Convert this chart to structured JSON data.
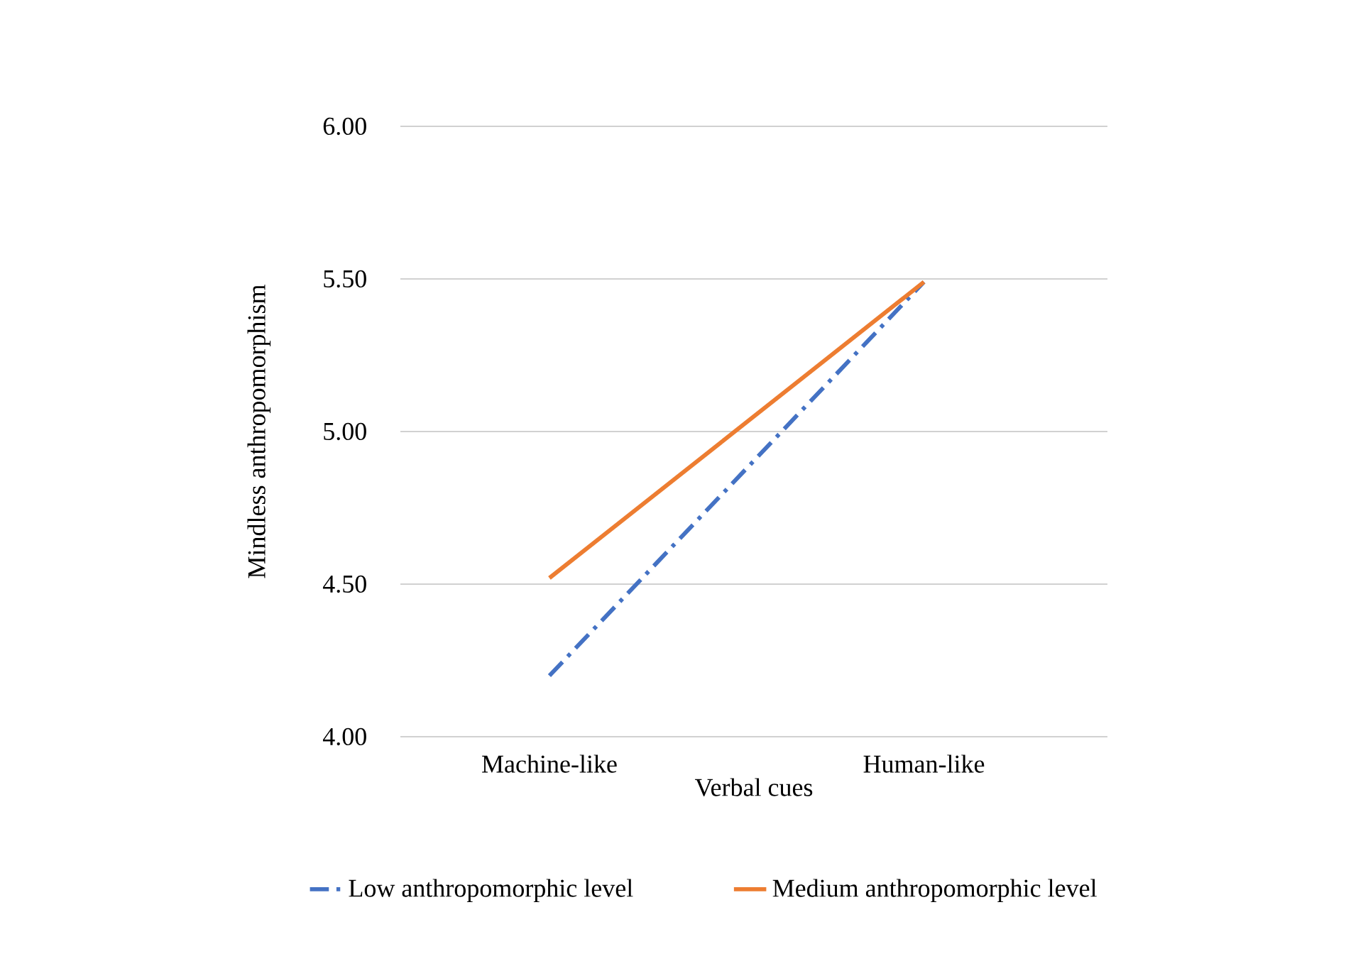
{
  "chart_data": {
    "type": "line",
    "xlabel": "Verbal  cues",
    "ylabel": "Mindless anthropomorphism",
    "categories": [
      "Machine-like",
      "Human-like"
    ],
    "series": [
      {
        "name": "Low anthropomorphic level",
        "color": "#4472c4",
        "values": [
          4.2,
          5.49
        ],
        "line_style": "dashed"
      },
      {
        "name": "Medium anthropomorphic level",
        "color": "#ed7d31",
        "values": [
          4.52,
          5.49
        ],
        "line_style": "solid"
      }
    ],
    "ylim": [
      4.0,
      6.0
    ],
    "yticks": [
      {
        "value": 4.0,
        "label": "4.00"
      },
      {
        "value": 4.5,
        "label": "4.50"
      },
      {
        "value": 5.0,
        "label": "5.00"
      },
      {
        "value": 5.5,
        "label": "5.50"
      },
      {
        "value": 6.0,
        "label": "6.00"
      }
    ],
    "grid": "y",
    "legend": "bottom",
    "marker": "none"
  }
}
